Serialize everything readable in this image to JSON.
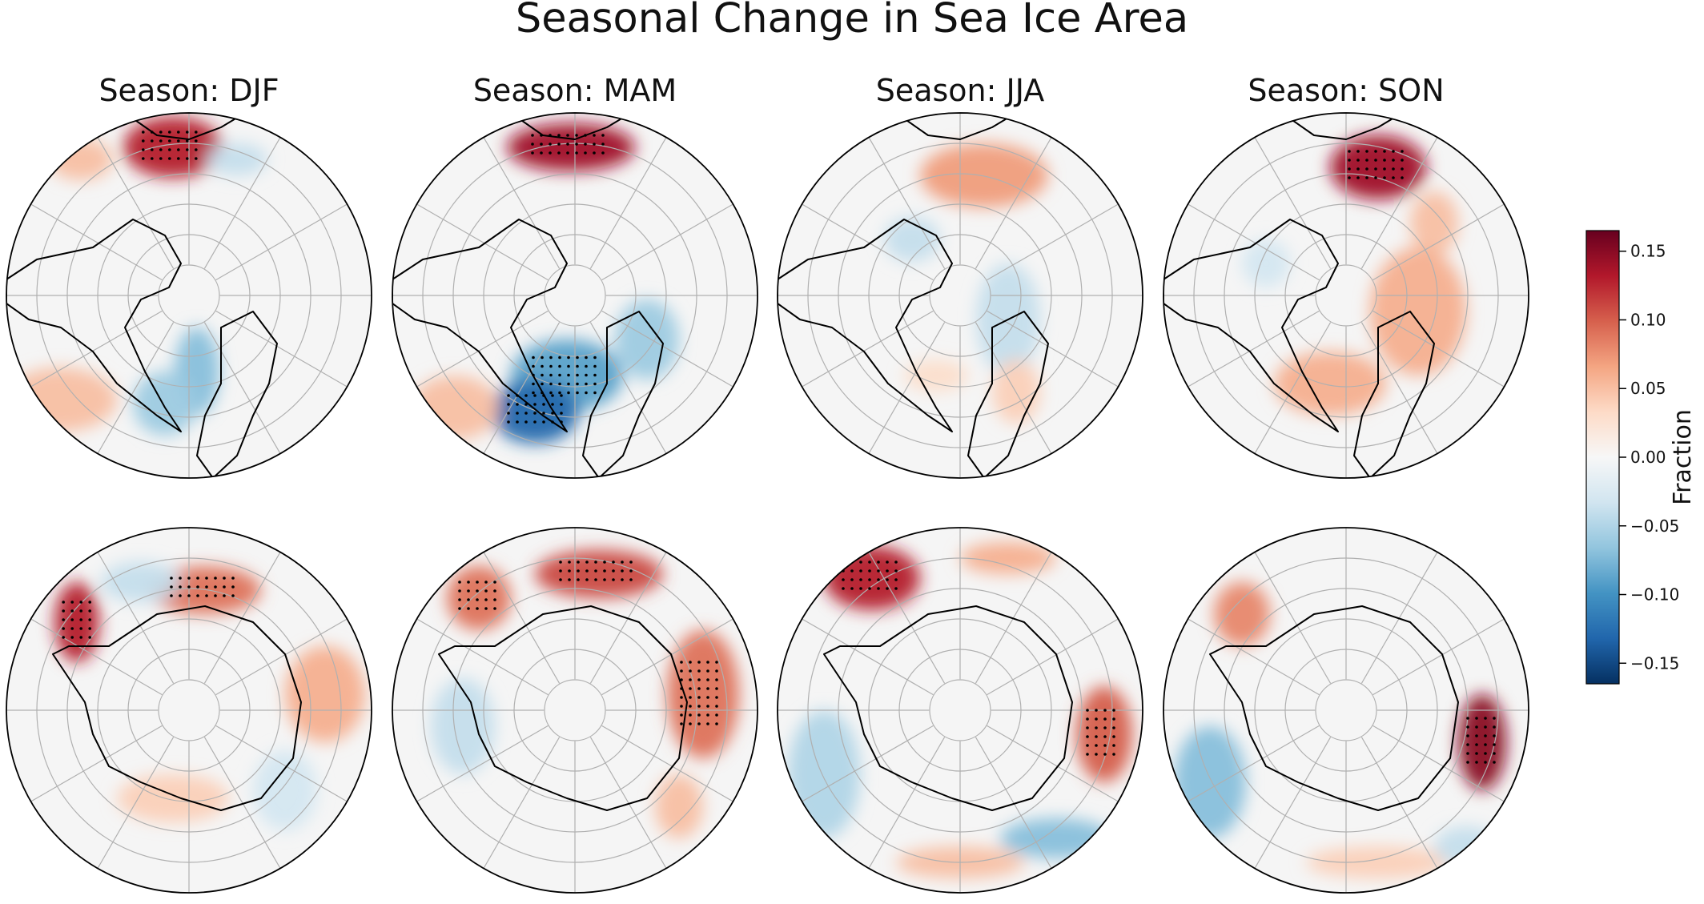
{
  "figure": {
    "title": "Seasonal Change in Sea Ice Area"
  },
  "seasons": [
    {
      "key": "DJF",
      "title": "Season: DJF"
    },
    {
      "key": "MAM",
      "title": "Season: MAM"
    },
    {
      "key": "JJA",
      "title": "Season: JJA"
    },
    {
      "key": "SON",
      "title": "Season: SON"
    }
  ],
  "hemispheres": [
    "north",
    "south"
  ],
  "colorbar": {
    "label": "Fraction",
    "colormap": "RdBu_r",
    "range": [
      -0.165,
      0.165
    ],
    "ticks": [
      0.15,
      0.1,
      0.05,
      0.0,
      -0.05,
      -0.1,
      -0.15
    ],
    "tick_labels": [
      "0.15",
      "0.10",
      "0.05",
      "0.00",
      "−0.05",
      "−0.10",
      "−0.15"
    ],
    "colors": [
      "#053061",
      "#2166ac",
      "#4393c3",
      "#92c5de",
      "#d1e5f0",
      "#f7f7f7",
      "#fddbc7",
      "#f4a582",
      "#d6604d",
      "#b2182b",
      "#67001f"
    ]
  },
  "map_style": {
    "ocean_color": "#f5f5f5",
    "coast_color": "#000000",
    "grid_color": "#b0b0b0"
  }
}
